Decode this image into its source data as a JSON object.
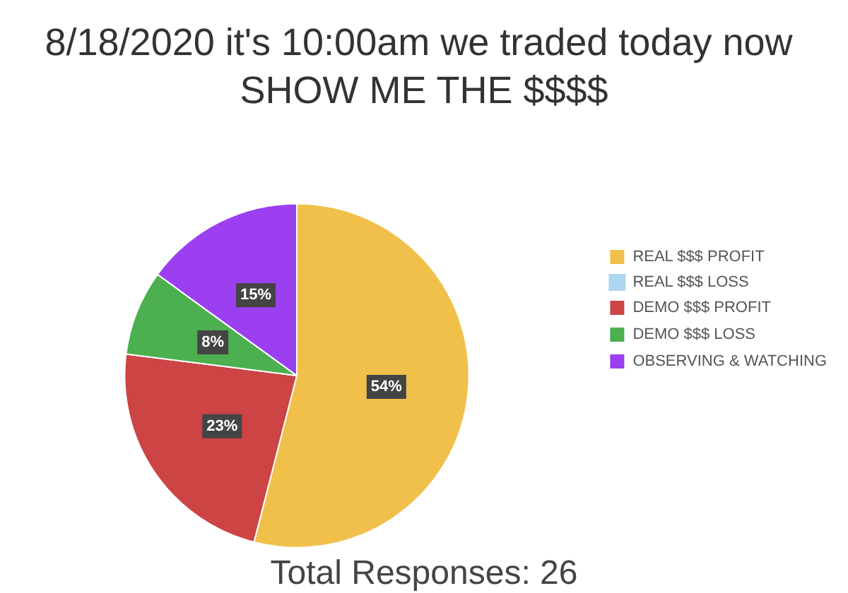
{
  "chart_data": {
    "type": "pie",
    "title": "8/18/2020 it's 10:00am we traded today now SHOW ME THE $$$$",
    "categories": [
      "REAL $$$ PROFIT",
      "REAL $$$ LOSS",
      "DEMO $$$ PROFIT",
      "DEMO $$$ LOSS",
      "OBSERVING & WATCHING"
    ],
    "values": [
      54,
      0,
      23,
      8,
      15
    ],
    "value_labels": [
      "54%",
      null,
      "23%",
      "8%",
      "15%"
    ],
    "colors": [
      "#f0c04a",
      "#aed6f1",
      "#cc4444",
      "#4caf50",
      "#9b3ff0"
    ],
    "legend": "right",
    "annotations": [
      "Total Responses: 26"
    ]
  }
}
